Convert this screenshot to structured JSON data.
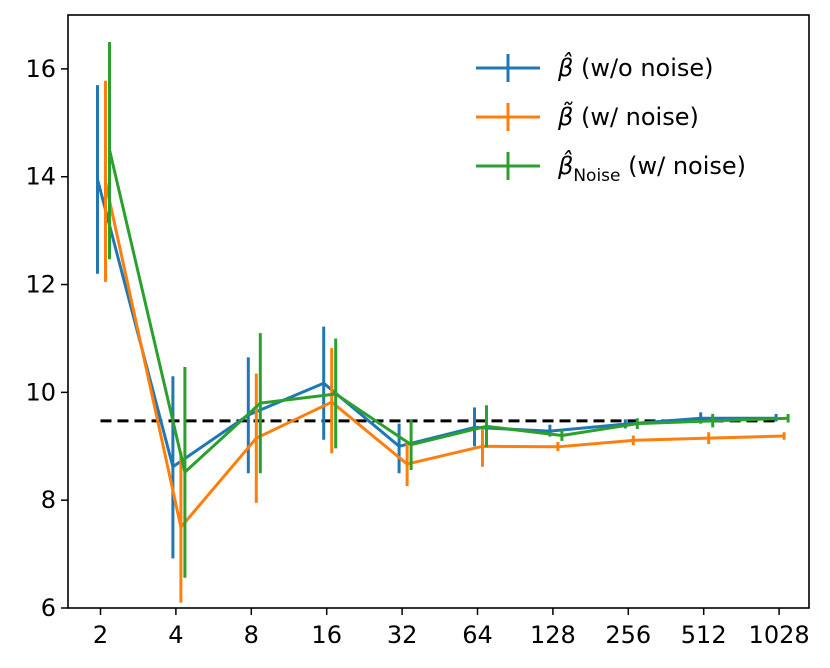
{
  "chart_data": {
    "type": "line",
    "title": "",
    "xlabel": "",
    "ylabel": "",
    "categories": [
      "2",
      "4",
      "8",
      "16",
      "32",
      "64",
      "128",
      "256",
      "512",
      "1028"
    ],
    "ylim": [
      6,
      17
    ],
    "yticks": [
      6,
      8,
      10,
      12,
      14,
      16
    ],
    "grid": false,
    "legend_position": "top-right",
    "reference_line": {
      "y": 9.47,
      "style": "dashed",
      "color": "#000000"
    },
    "series": [
      {
        "name": "β̂ (w/o noise)",
        "legend_symbol": "β̂",
        "legend_sub": "",
        "legend_text": "(w/o noise)",
        "color": "#1f77b4",
        "values": [
          13.95,
          8.62,
          9.58,
          10.17,
          9.0,
          9.35,
          9.28,
          9.41,
          9.52,
          9.52
        ],
        "err_low": [
          12.2,
          6.92,
          8.5,
          9.12,
          8.5,
          9.0,
          9.18,
          9.33,
          9.42,
          9.46
        ],
        "err_high": [
          15.7,
          10.3,
          10.65,
          11.22,
          9.42,
          9.72,
          9.4,
          9.5,
          9.63,
          9.6
        ]
      },
      {
        "name": "β̃ (w/ noise)",
        "legend_symbol": "β̃",
        "legend_sub": "",
        "legend_text": "(w/ noise)",
        "color": "#ff7f0e",
        "values": [
          13.9,
          7.5,
          9.15,
          9.82,
          8.67,
          9.0,
          8.99,
          9.11,
          9.15,
          9.19
        ],
        "err_low": [
          12.05,
          6.1,
          7.95,
          8.87,
          8.26,
          8.62,
          8.91,
          9.02,
          9.04,
          9.12
        ],
        "err_high": [
          15.78,
          8.9,
          10.35,
          10.82,
          9.1,
          9.38,
          9.08,
          9.2,
          9.26,
          9.26
        ]
      },
      {
        "name": "β̂Noise (w/ noise)",
        "legend_symbol": "β̂",
        "legend_sub": "Noise",
        "legend_text": "(w/ noise)",
        "color": "#2ca02c",
        "values": [
          14.5,
          8.52,
          9.8,
          9.97,
          9.03,
          9.37,
          9.2,
          9.42,
          9.47,
          9.52
        ],
        "err_low": [
          12.47,
          6.56,
          8.5,
          8.96,
          8.56,
          8.98,
          9.1,
          9.32,
          9.35,
          9.44
        ],
        "err_high": [
          16.5,
          10.47,
          11.1,
          11.0,
          9.5,
          9.76,
          9.3,
          9.52,
          9.6,
          9.6
        ]
      }
    ]
  }
}
